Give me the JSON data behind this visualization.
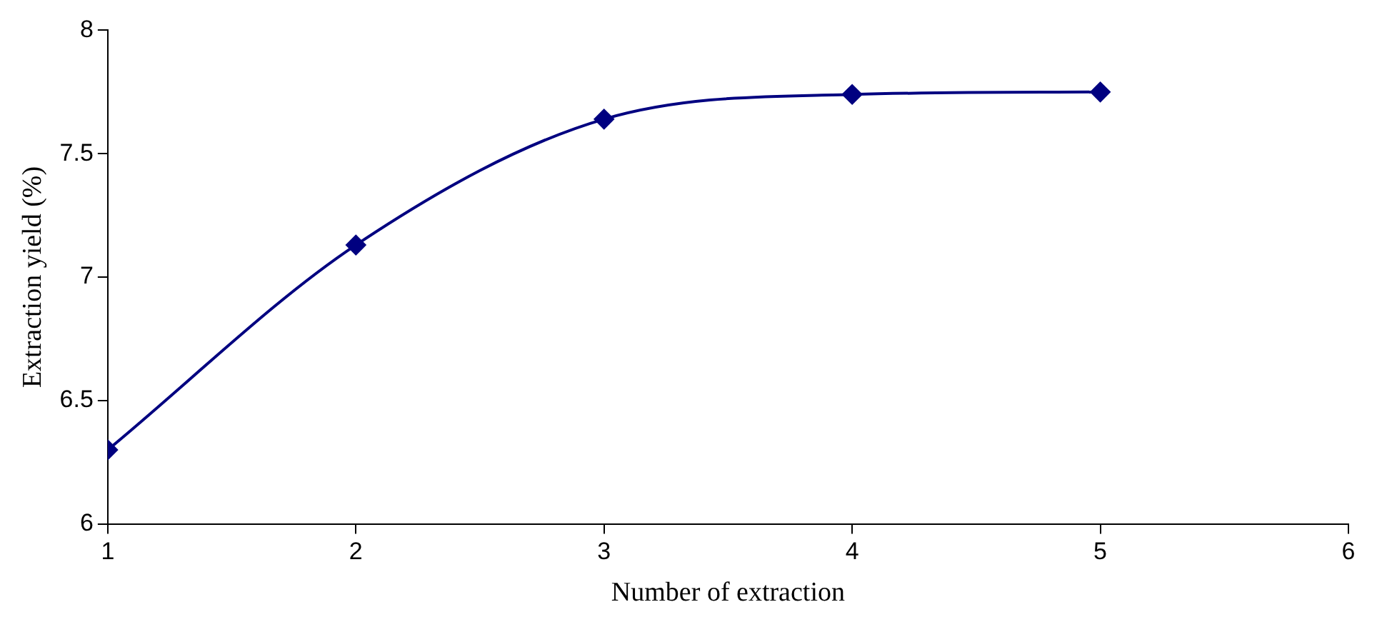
{
  "chart_data": {
    "type": "line",
    "xlabel": "Number of extraction",
    "ylabel": "Extraction yield (%)",
    "x": [
      1,
      2,
      3,
      4,
      5
    ],
    "series": [
      {
        "color": "#000080",
        "values": [
          6.3,
          7.13,
          7.64,
          7.74,
          7.75
        ]
      }
    ],
    "xlim": [
      1,
      6
    ],
    "xticks": [
      1,
      2,
      3,
      4,
      5,
      6
    ],
    "ylim": [
      6,
      8
    ],
    "yticks": [
      6,
      6.5,
      7,
      7.5,
      8
    ],
    "grid": false,
    "legend": false,
    "marker": "diamond",
    "line_style": "solid"
  }
}
